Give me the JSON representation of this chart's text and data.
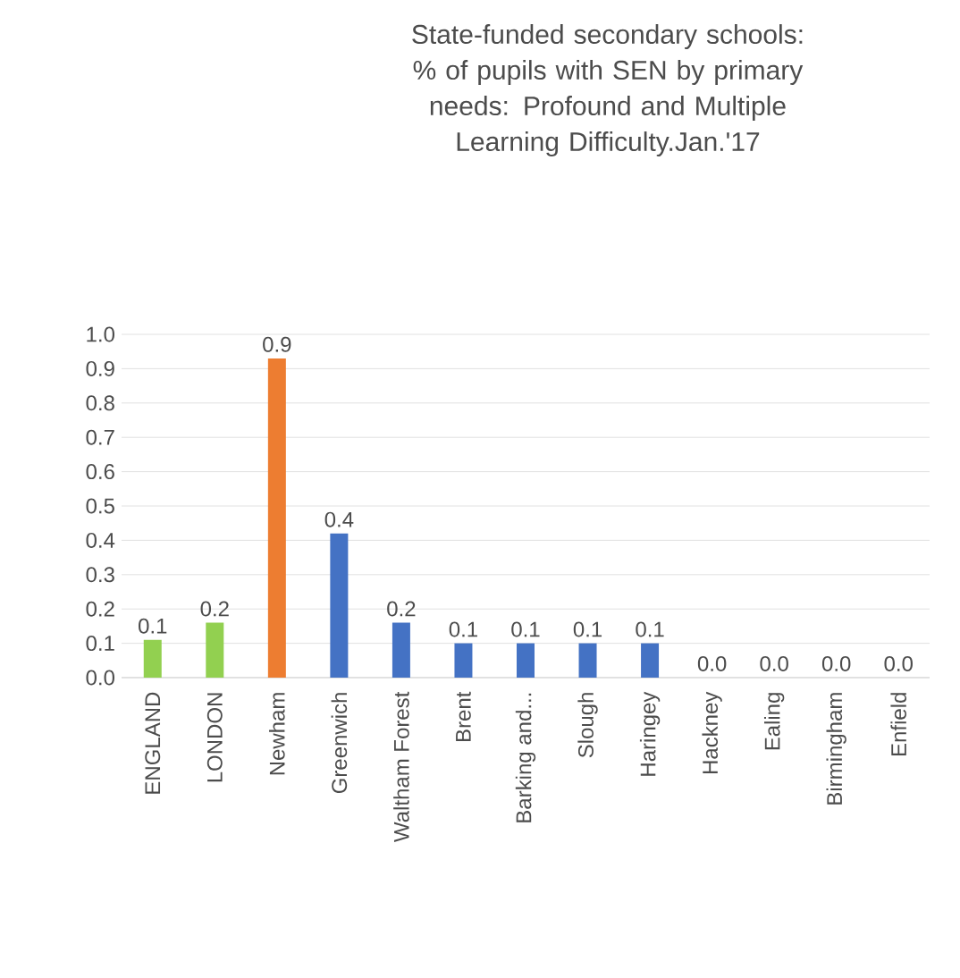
{
  "chart_data": {
    "type": "bar",
    "title": "State-funded secondary schools: % of pupils with SEN by primary needs: Profound and Multiple Learning Difficulty.Jan.'17",
    "categories": [
      "ENGLAND",
      "LONDON",
      "Newham",
      "Greenwich",
      "Waltham Forest",
      "Brent",
      "Barking and...",
      "Slough",
      "Haringey",
      "Hackney",
      "Ealing",
      "Birmingham",
      "Enfield"
    ],
    "values": [
      0.11,
      0.16,
      0.93,
      0.42,
      0.16,
      0.1,
      0.1,
      0.1,
      0.1,
      0,
      0,
      0,
      0
    ],
    "value_labels": [
      "0.1",
      "0.2",
      "0.9",
      "0.4",
      "0.2",
      "0.1",
      "0.1",
      "0.1",
      "0.1",
      "0.0",
      "0.0",
      "0.0",
      "0.0"
    ],
    "colors": [
      "#92d050",
      "#92d050",
      "#ed7d31",
      "#4472c4",
      "#4472c4",
      "#4472c4",
      "#4472c4",
      "#4472c4",
      "#4472c4",
      "#4472c4",
      "#4472c4",
      "#4472c4",
      "#4472c4"
    ],
    "ylim": [
      0,
      1
    ],
    "yticks": [
      {
        "value": 0,
        "label": "0.0"
      },
      {
        "value": 0.1,
        "label": "0.1"
      },
      {
        "value": 0.2,
        "label": "0.2"
      },
      {
        "value": 0.3,
        "label": "0.3"
      },
      {
        "value": 0.4,
        "label": "0.4"
      },
      {
        "value": 0.5,
        "label": "0.5"
      },
      {
        "value": 0.6,
        "label": "0.6"
      },
      {
        "value": 0.7,
        "label": "0.7"
      },
      {
        "value": 0.8,
        "label": "0.8"
      },
      {
        "value": 0.9,
        "label": "0.9"
      },
      {
        "value": 1.0,
        "label": "1.0"
      }
    ],
    "grid": "y"
  }
}
